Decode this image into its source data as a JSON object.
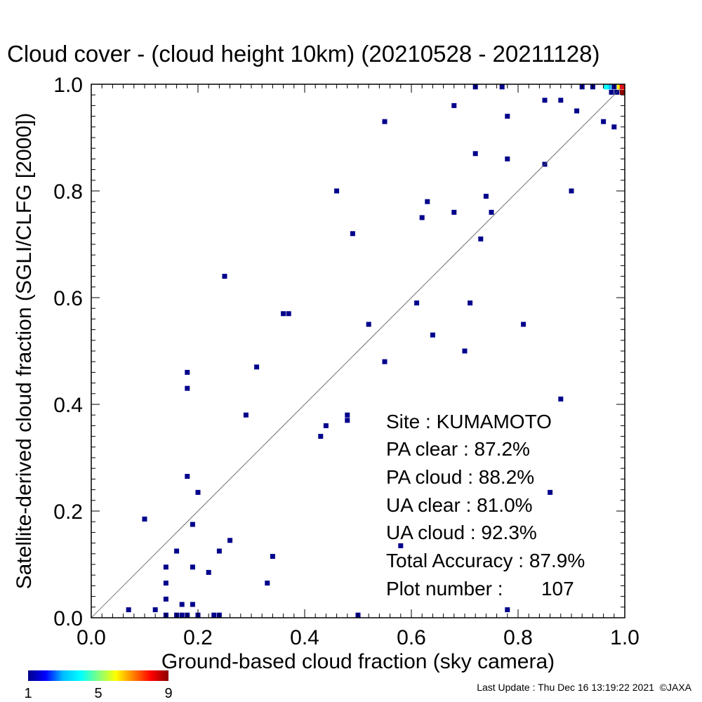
{
  "chart_data": {
    "type": "scatter",
    "title": "Cloud cover - (cloud height 10km)  (20210528 - 20211128)",
    "xlabel": "Ground-based cloud fraction (sky camera)",
    "ylabel": "Satellite-derived cloud fraction (SGLI/CLFG [2000])",
    "xlim": [
      0,
      1
    ],
    "ylim": [
      0,
      1
    ],
    "x_ticks": [
      "0.0",
      "0.2",
      "0.4",
      "0.6",
      "0.8",
      "1.0"
    ],
    "y_ticks": [
      "0.0",
      "0.2",
      "0.4",
      "0.6",
      "0.8",
      "1.0"
    ],
    "reference_line": "y = x",
    "grid": false,
    "stats": {
      "site": "Site : KUMAMOTO",
      "pa_clear": "PA clear :  87.2%",
      "pa_cloud": "PA cloud :  88.2%",
      "ua_clear": "UA clear :  81.0%",
      "ua_cloud": "UA cloud :  92.3%",
      "total_accuracy": "Total Accuracy :  87.9%",
      "plot_number": "Plot number :       107"
    },
    "colorbar": {
      "labels": [
        "1",
        "5",
        "9"
      ],
      "min": 1,
      "max": 9,
      "colors": [
        "#00008b",
        "#0000ff",
        "#00bfff",
        "#00ffff",
        "#80ff80",
        "#ffff00",
        "#ff8000",
        "#ff0000",
        "#8b0000"
      ]
    },
    "points": [
      {
        "x": 0.07,
        "y": 0.015,
        "c": 1
      },
      {
        "x": 0.1,
        "y": 0.185,
        "c": 1
      },
      {
        "x": 0.12,
        "y": 0.015,
        "c": 1
      },
      {
        "x": 0.14,
        "y": 0.095,
        "c": 1
      },
      {
        "x": 0.14,
        "y": 0.065,
        "c": 1
      },
      {
        "x": 0.14,
        "y": 0.035,
        "c": 1
      },
      {
        "x": 0.14,
        "y": 0.005,
        "c": 1
      },
      {
        "x": 0.16,
        "y": 0.125,
        "c": 1
      },
      {
        "x": 0.16,
        "y": 0.005,
        "c": 1
      },
      {
        "x": 0.17,
        "y": 0.025,
        "c": 1
      },
      {
        "x": 0.17,
        "y": 0.005,
        "c": 1
      },
      {
        "x": 0.18,
        "y": 0.005,
        "c": 1
      },
      {
        "x": 0.18,
        "y": 0.46,
        "c": 1
      },
      {
        "x": 0.18,
        "y": 0.43,
        "c": 1
      },
      {
        "x": 0.18,
        "y": 0.265,
        "c": 1
      },
      {
        "x": 0.19,
        "y": 0.175,
        "c": 1
      },
      {
        "x": 0.19,
        "y": 0.095,
        "c": 1
      },
      {
        "x": 0.19,
        "y": 0.025,
        "c": 1
      },
      {
        "x": 0.2,
        "y": 0.235,
        "c": 1
      },
      {
        "x": 0.2,
        "y": 0.005,
        "c": 1
      },
      {
        "x": 0.22,
        "y": 0.085,
        "c": 1
      },
      {
        "x": 0.23,
        "y": 0.005,
        "c": 1
      },
      {
        "x": 0.24,
        "y": 0.125,
        "c": 1
      },
      {
        "x": 0.24,
        "y": 0.005,
        "c": 1
      },
      {
        "x": 0.25,
        "y": 0.64,
        "c": 1
      },
      {
        "x": 0.26,
        "y": 0.145,
        "c": 1
      },
      {
        "x": 0.29,
        "y": 0.38,
        "c": 1
      },
      {
        "x": 0.31,
        "y": 0.47,
        "c": 1
      },
      {
        "x": 0.33,
        "y": 0.065,
        "c": 1
      },
      {
        "x": 0.34,
        "y": 0.115,
        "c": 1
      },
      {
        "x": 0.36,
        "y": 0.57,
        "c": 1
      },
      {
        "x": 0.37,
        "y": 0.57,
        "c": 1
      },
      {
        "x": 0.43,
        "y": 0.34,
        "c": 1
      },
      {
        "x": 0.44,
        "y": 0.36,
        "c": 1
      },
      {
        "x": 0.46,
        "y": 0.8,
        "c": 1
      },
      {
        "x": 0.48,
        "y": 0.38,
        "c": 1
      },
      {
        "x": 0.48,
        "y": 0.37,
        "c": 1
      },
      {
        "x": 0.49,
        "y": 0.72,
        "c": 1
      },
      {
        "x": 0.5,
        "y": 0.005,
        "c": 1
      },
      {
        "x": 0.52,
        "y": 0.55,
        "c": 1
      },
      {
        "x": 0.55,
        "y": 0.93,
        "c": 1
      },
      {
        "x": 0.55,
        "y": 0.48,
        "c": 1
      },
      {
        "x": 0.58,
        "y": 0.135,
        "c": 1
      },
      {
        "x": 0.61,
        "y": 0.59,
        "c": 1
      },
      {
        "x": 0.62,
        "y": 0.75,
        "c": 1
      },
      {
        "x": 0.63,
        "y": 0.78,
        "c": 1
      },
      {
        "x": 0.64,
        "y": 0.53,
        "c": 1
      },
      {
        "x": 0.68,
        "y": 0.96,
        "c": 1
      },
      {
        "x": 0.68,
        "y": 0.76,
        "c": 1
      },
      {
        "x": 0.7,
        "y": 0.5,
        "c": 1
      },
      {
        "x": 0.71,
        "y": 0.59,
        "c": 1
      },
      {
        "x": 0.72,
        "y": 0.995,
        "c": 1
      },
      {
        "x": 0.72,
        "y": 0.87,
        "c": 1
      },
      {
        "x": 0.73,
        "y": 0.71,
        "c": 1
      },
      {
        "x": 0.74,
        "y": 0.79,
        "c": 1
      },
      {
        "x": 0.75,
        "y": 0.76,
        "c": 1
      },
      {
        "x": 0.77,
        "y": 0.995,
        "c": 1
      },
      {
        "x": 0.78,
        "y": 0.94,
        "c": 1
      },
      {
        "x": 0.78,
        "y": 0.86,
        "c": 1
      },
      {
        "x": 0.78,
        "y": 0.015,
        "c": 1
      },
      {
        "x": 0.81,
        "y": 0.55,
        "c": 1
      },
      {
        "x": 0.85,
        "y": 0.97,
        "c": 1
      },
      {
        "x": 0.85,
        "y": 0.85,
        "c": 1
      },
      {
        "x": 0.86,
        "y": 0.235,
        "c": 1
      },
      {
        "x": 0.88,
        "y": 0.97,
        "c": 1
      },
      {
        "x": 0.88,
        "y": 0.41,
        "c": 1
      },
      {
        "x": 0.9,
        "y": 0.8,
        "c": 1
      },
      {
        "x": 0.91,
        "y": 0.95,
        "c": 1
      },
      {
        "x": 0.92,
        "y": 0.995,
        "c": 1
      },
      {
        "x": 0.94,
        "y": 0.995,
        "c": 1
      },
      {
        "x": 0.96,
        "y": 0.93,
        "c": 1
      },
      {
        "x": 0.97,
        "y": 0.995,
        "c": 3
      },
      {
        "x": 0.98,
        "y": 0.92,
        "c": 1
      },
      {
        "x": 0.98,
        "y": 0.995,
        "c": 1
      },
      {
        "x": 0.99,
        "y": 0.995,
        "c": 6
      },
      {
        "x": 0.995,
        "y": 0.995,
        "c": 8
      },
      {
        "x": 0.995,
        "y": 0.985,
        "c": 9
      },
      {
        "x": 0.985,
        "y": 0.985,
        "c": 1
      },
      {
        "x": 0.975,
        "y": 0.985,
        "c": 1
      },
      {
        "x": 0.965,
        "y": 0.995,
        "c": 4
      }
    ]
  },
  "footer": {
    "last_update": "Last Update : Thu Dec 16 13:19:22 2021  ©JAXA"
  }
}
